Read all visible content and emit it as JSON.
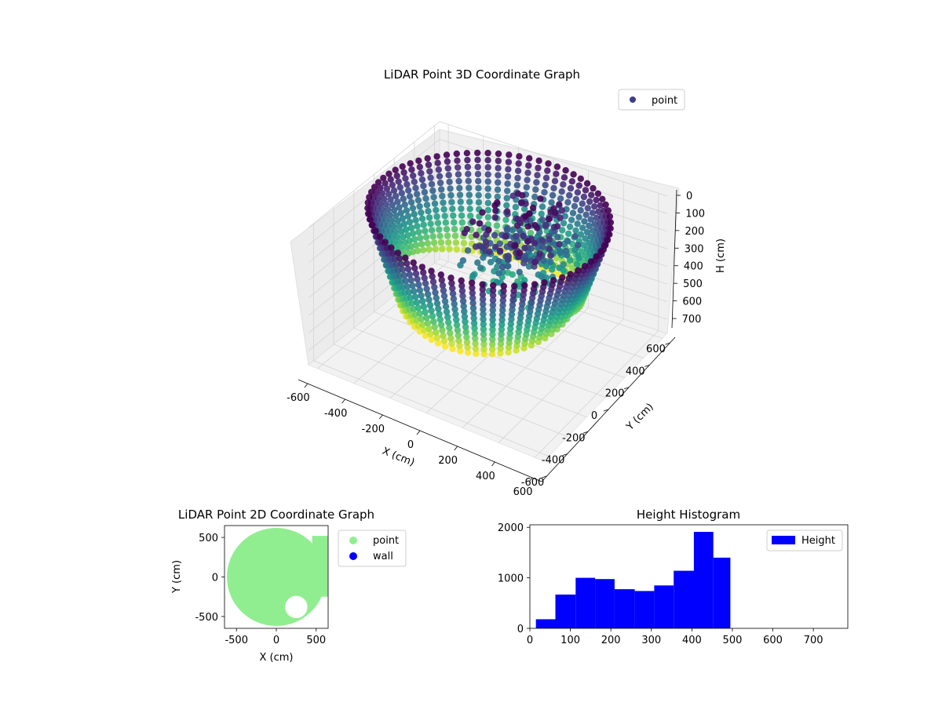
{
  "chart_data": [
    {
      "type": "scatter",
      "projection": "3d",
      "title": "LiDAR Point 3D Coordinate Graph",
      "xlabel": "X (cm)",
      "ylabel": "Y (cm)",
      "zlabel": "H (cm)",
      "xlim": [
        -650,
        650
      ],
      "ylim": [
        -650,
        650
      ],
      "zlim": [
        0,
        780
      ],
      "z_inverted": true,
      "xticks": [
        -600,
        -400,
        -200,
        0,
        200,
        400,
        600
      ],
      "yticks": [
        -600,
        -400,
        -200,
        0,
        200,
        400,
        600
      ],
      "zticks": [
        0,
        100,
        200,
        300,
        400,
        500,
        600,
        700
      ],
      "grid": true,
      "colormap": "viridis",
      "legend": {
        "position": "top-right",
        "entries": [
          {
            "label": "point",
            "color": "#3b3e86"
          }
        ]
      },
      "shape": {
        "kind": "cylindrical-scan",
        "radius_min": 500,
        "radius_max": 650,
        "height_range": [
          0,
          500
        ],
        "dense_block_angle_range_deg": [
          -20,
          20
        ]
      }
    },
    {
      "type": "scatter",
      "title": "LiDAR Point 2D Coordinate Graph",
      "xlabel": "X (cm)",
      "ylabel": "Y (cm)",
      "xlim": [
        -650,
        650
      ],
      "ylim": [
        -650,
        650
      ],
      "xticks": [
        -500,
        0,
        500
      ],
      "yticks": [
        -500,
        0,
        500
      ],
      "legend": {
        "position": "outside-right",
        "entries": [
          {
            "label": "point",
            "color": "#90ee90"
          },
          {
            "label": "wall",
            "color": "#0000ff"
          }
        ]
      },
      "region": {
        "shape": "disc",
        "radius": 620,
        "notch_center": [
          250,
          -380
        ],
        "notch_radius": 140
      }
    },
    {
      "type": "bar",
      "title": "Height Histogram",
      "series": [
        {
          "name": "Height",
          "color": "#0000ff",
          "bin_edges": [
            15,
            63,
            113,
            161,
            209,
            259,
            307,
            355,
            405,
            453,
            495
          ],
          "values": [
            180,
            670,
            1000,
            975,
            775,
            740,
            850,
            1140,
            1910,
            1400
          ]
        }
      ],
      "xlim": [
        0,
        785
      ],
      "ylim": [
        0,
        2050
      ],
      "xticks": [
        0,
        100,
        200,
        300,
        400,
        500,
        600,
        700
      ],
      "yticks": [
        0,
        1000,
        2000
      ],
      "legend": {
        "position": "top-right"
      }
    }
  ]
}
